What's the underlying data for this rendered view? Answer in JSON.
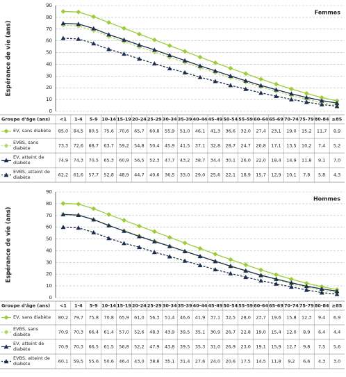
{
  "chart_data": [
    {
      "type": "line",
      "title": "Femmes",
      "ylabel": "Espérance de vie (ans)",
      "xlabel": "Groupe d'âge (ans)",
      "categories": [
        "<1",
        "1-4",
        "5-9",
        "10-14",
        "15-19",
        "20-24",
        "25-29",
        "30-34",
        "35-39",
        "40-44",
        "45-49",
        "50-54",
        "55-59",
        "60-64",
        "65-69",
        "70-74",
        "75-79",
        "80-84",
        "≥85"
      ],
      "ylim": [
        0,
        90
      ],
      "yticks": [
        0,
        10,
        20,
        30,
        40,
        50,
        60,
        70,
        80,
        90
      ],
      "grid": true,
      "series": [
        {
          "name": "EV, sans diabète",
          "color": "#9ccc3c",
          "marker": "diamond",
          "line_style": "solid",
          "values": [
            85.0,
            84.5,
            80.5,
            75.6,
            70.6,
            65.7,
            60.8,
            55.9,
            51.0,
            46.1,
            41.3,
            36.6,
            32.0,
            27.4,
            23.1,
            19.0,
            15.2,
            11.7,
            8.9
          ],
          "value_labels": [
            "85,0",
            "84,5",
            "80,5",
            "75,6",
            "70,6",
            "65,7",
            "60,8",
            "55,9",
            "51,0",
            "46,1",
            "41,3",
            "36,6",
            "32,0",
            "27,4",
            "23,1",
            "19,0",
            "15,2",
            "11,7",
            "8,9"
          ]
        },
        {
          "name": "EVBS, sans diabète",
          "color": "#b5d96a",
          "marker": "diamond",
          "line_style": "dashed",
          "values": [
            73.3,
            72.6,
            68.7,
            63.7,
            59.2,
            54.8,
            50.4,
            45.9,
            41.5,
            37.1,
            32.8,
            28.7,
            24.7,
            20.8,
            17.1,
            13.5,
            10.2,
            7.4,
            5.2
          ],
          "value_labels": [
            "73,3",
            "72,6",
            "68,7",
            "63,7",
            "59,2",
            "54,8",
            "50,4",
            "45,9",
            "41,5",
            "37,1",
            "32,8",
            "28,7",
            "24,7",
            "20,8",
            "17,1",
            "13,5",
            "10,2",
            "7,4",
            "5,2"
          ]
        },
        {
          "name": "EV, atteint de diabète",
          "color": "#1c2d4f",
          "marker": "triangle",
          "line_style": "solid",
          "values": [
            74.9,
            74.3,
            70.5,
            65.3,
            60.9,
            56.5,
            52.3,
            47.7,
            43.2,
            38.7,
            34.4,
            30.1,
            26.0,
            22.0,
            18.4,
            14.9,
            11.8,
            9.1,
            7.0
          ],
          "value_labels": [
            "74,9",
            "74,3",
            "70,5",
            "65,3",
            "60,9",
            "56,5",
            "52,3",
            "47,7",
            "43,2",
            "38,7",
            "34,4",
            "30,1",
            "26,0",
            "22,0",
            "18,4",
            "14,9",
            "11,8",
            "9,1",
            "7,0"
          ]
        },
        {
          "name": "EVBS, atteint de diabète",
          "color": "#1c2d4f",
          "marker": "triangle",
          "line_style": "dashed",
          "values": [
            62.2,
            61.6,
            57.7,
            52.8,
            48.9,
            44.7,
            40.6,
            36.5,
            33.0,
            29.0,
            25.6,
            22.1,
            18.9,
            15.7,
            12.9,
            10.1,
            7.8,
            5.8,
            4.3
          ],
          "value_labels": [
            "62,2",
            "61,6",
            "57,7",
            "52,8",
            "48,9",
            "44,7",
            "40,6",
            "36,5",
            "33,0",
            "29,0",
            "25,6",
            "22,1",
            "18,9",
            "15,7",
            "12,9",
            "10,1",
            "7,8",
            "5,8",
            "4,3"
          ]
        }
      ]
    },
    {
      "type": "line",
      "title": "Hommes",
      "ylabel": "Espérance de vie (ans)",
      "xlabel": "Groupe d'âge (ans)",
      "categories": [
        "<1",
        "1-4",
        "5-9",
        "10-14",
        "15-19",
        "20-24",
        "25-29",
        "30-34",
        "35-39",
        "40-44",
        "45-49",
        "50-54",
        "55-59",
        "60-64",
        "65-69",
        "70-74",
        "75-79",
        "80-84",
        "≥85"
      ],
      "ylim": [
        0,
        90
      ],
      "yticks": [
        0,
        10,
        20,
        30,
        40,
        50,
        60,
        70,
        80,
        90
      ],
      "grid": true,
      "series": [
        {
          "name": "EV, sans diabète",
          "color": "#9ccc3c",
          "marker": "diamond",
          "line_style": "solid",
          "values": [
            80.2,
            79.7,
            75.8,
            70.8,
            65.9,
            61.0,
            56.3,
            51.4,
            46.6,
            41.9,
            37.1,
            32.5,
            28.0,
            23.7,
            19.6,
            15.8,
            12.3,
            9.4,
            6.9
          ],
          "value_labels": [
            "80,2",
            "79,7",
            "75,8",
            "70,8",
            "65,9",
            "61,0",
            "56,3",
            "51,4",
            "46,6",
            "41,9",
            "37,1",
            "32,5",
            "28,0",
            "23,7",
            "19,6",
            "15,8",
            "12,3",
            "9,4",
            "6,9"
          ]
        },
        {
          "name": "EVBS, sans diabète",
          "color": "#b5d96a",
          "marker": "diamond",
          "line_style": "dashed",
          "values": [
            70.9,
            70.3,
            66.4,
            61.4,
            57.0,
            52.6,
            48.3,
            43.9,
            39.5,
            35.1,
            30.9,
            26.7,
            22.8,
            19.0,
            15.4,
            12.0,
            8.9,
            6.4,
            4.4
          ],
          "value_labels": [
            "70,9",
            "70,3",
            "66,4",
            "61,4",
            "57,0",
            "52,6",
            "48,3",
            "43,9",
            "39,5",
            "35,1",
            "30,9",
            "26,7",
            "22,8",
            "19,0",
            "15,4",
            "12,0",
            "8,9",
            "6,4",
            "4,4"
          ]
        },
        {
          "name": "EV, atteint de diabète",
          "color": "#1c2d4f",
          "marker": "triangle",
          "line_style": "solid",
          "values": [
            70.9,
            70.3,
            66.5,
            61.5,
            56.8,
            52.2,
            47.9,
            43.8,
            39.5,
            35.3,
            31.0,
            26.9,
            23.0,
            19.1,
            15.9,
            12.7,
            9.8,
            7.5,
            5.6
          ],
          "value_labels": [
            "70,9",
            "70,3",
            "66,5",
            "61,5",
            "56,8",
            "52,2",
            "47,9",
            "43,8",
            "39,5",
            "35,3",
            "31,0",
            "26,9",
            "23,0",
            "19,1",
            "15,9",
            "12,7",
            "9,8",
            "7,5",
            "5,6"
          ]
        },
        {
          "name": "EVBS, atteint de diabète",
          "color": "#1c2d4f",
          "marker": "triangle",
          "line_style": "dashed",
          "values": [
            60.1,
            59.5,
            55.6,
            50.6,
            46.4,
            43.0,
            38.8,
            35.1,
            31.4,
            27.6,
            24.0,
            20.6,
            17.5,
            14.5,
            11.8,
            9.2,
            6.6,
            4.3,
            3.0
          ],
          "value_labels": [
            "60,1",
            "59,5",
            "55,6",
            "50,6",
            "46,4",
            "43,0",
            "38,8",
            "35,1",
            "31,4",
            "27,6",
            "24,0",
            "20,6",
            "17,5",
            "14,5",
            "11,8",
            "9,2",
            "6,6",
            "4,3",
            "3,0"
          ]
        }
      ]
    }
  ]
}
